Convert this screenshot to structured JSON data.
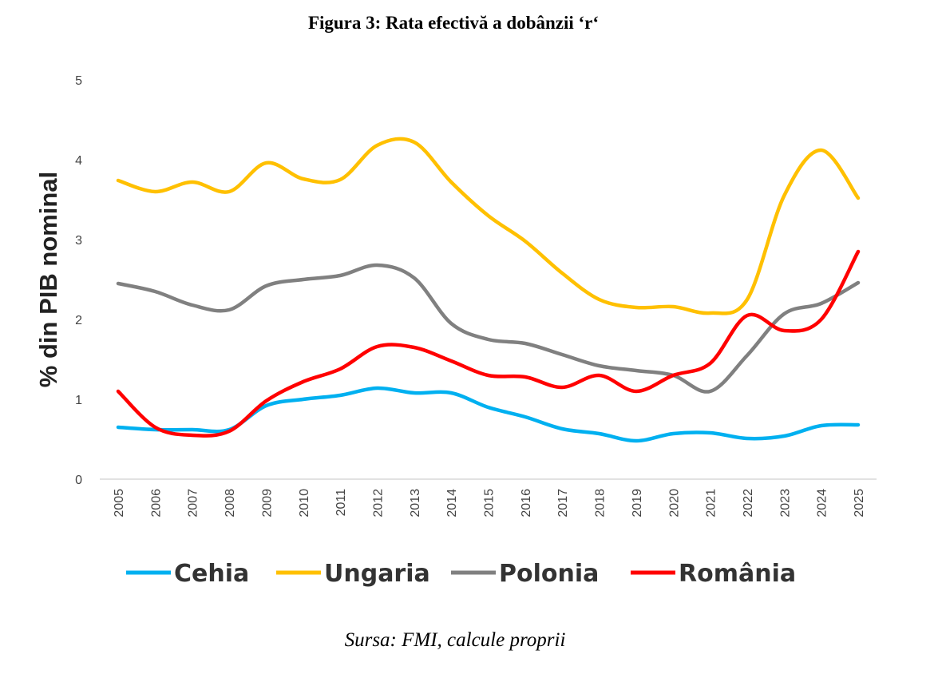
{
  "title": "Figura 3: Rata efectivă a dobânzii ‘r‘",
  "source": "Sursa: FMI, calcule proprii",
  "chart_data": {
    "type": "line",
    "title": "Figura 3: Rata efectivă a dobânzii ‘r‘",
    "xlabel": "",
    "ylabel": "% din PIB nominal",
    "ylim": [
      0,
      5
    ],
    "yticks": [
      "0",
      "1",
      "2",
      "3",
      "4",
      "5"
    ],
    "grid": false,
    "legend": "bottom",
    "x": [
      "2005",
      "2006",
      "2007",
      "2008",
      "2009",
      "2010",
      "2011",
      "2012",
      "2013",
      "2014",
      "2015",
      "2016",
      "2017",
      "2018",
      "2019",
      "2020",
      "2021",
      "2022",
      "2023",
      "2024",
      "2025"
    ],
    "series": [
      {
        "name": "Cehia",
        "color": "#00B0F0",
        "values": [
          0.65,
          0.62,
          0.62,
          0.62,
          0.92,
          1.0,
          1.05,
          1.14,
          1.08,
          1.08,
          0.9,
          0.78,
          0.63,
          0.57,
          0.48,
          0.57,
          0.58,
          0.51,
          0.54,
          0.67,
          0.68
        ]
      },
      {
        "name": "Ungaria",
        "color": "#FFC000",
        "values": [
          3.74,
          3.6,
          3.72,
          3.6,
          3.96,
          3.76,
          3.75,
          4.18,
          4.22,
          3.72,
          3.3,
          2.98,
          2.58,
          2.25,
          2.15,
          2.16,
          2.08,
          2.25,
          3.55,
          4.12,
          3.52
        ]
      },
      {
        "name": "Polonia",
        "color": "#808080",
        "values": [
          2.45,
          2.35,
          2.18,
          2.12,
          2.42,
          2.5,
          2.55,
          2.68,
          2.52,
          1.95,
          1.75,
          1.7,
          1.56,
          1.42,
          1.36,
          1.3,
          1.1,
          1.55,
          2.07,
          2.2,
          2.46
        ]
      },
      {
        "name": "România",
        "color": "#FF0000",
        "values": [
          1.1,
          0.65,
          0.55,
          0.6,
          0.98,
          1.22,
          1.38,
          1.66,
          1.65,
          1.48,
          1.3,
          1.28,
          1.15,
          1.3,
          1.1,
          1.3,
          1.45,
          2.05,
          1.86,
          2.0,
          2.85
        ]
      }
    ]
  }
}
